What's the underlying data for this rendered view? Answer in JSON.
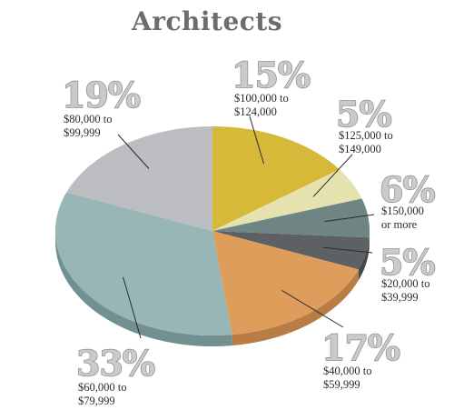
{
  "chart_data": {
    "type": "pie",
    "title": "Architects",
    "slices": [
      {
        "label_line1": "$100,000 to",
        "label_line2": "$124,000",
        "percent_text": "15%",
        "value": 15,
        "color": "#d7b93a",
        "side_color": "#b39a2e"
      },
      {
        "label_line1": "$125,000 to",
        "label_line2": "$149,000",
        "percent_text": "5%",
        "value": 5,
        "color": "#e6e2b0",
        "side_color": "#c4c090"
      },
      {
        "label_line1": "$150,000",
        "label_line2": "or more",
        "percent_text": "6%",
        "value": 6,
        "color": "#6f8584",
        "side_color": "#566968"
      },
      {
        "label_line1": "$20,000 to",
        "label_line2": "$39,999",
        "percent_text": "5%",
        "value": 5,
        "color": "#5d6163",
        "side_color": "#46494b"
      },
      {
        "label_line1": "$40,000 to",
        "label_line2": "$59,999",
        "percent_text": "17%",
        "value": 17,
        "color": "#df9d5c",
        "side_color": "#b77d45"
      },
      {
        "label_line1": "$60,000 to",
        "label_line2": "$79,999",
        "percent_text": "33%",
        "value": 33,
        "color": "#97b6b5",
        "side_color": "#71908f"
      },
      {
        "label_line1": "$80,000 to",
        "label_line2": "$99,999",
        "percent_text": "19%",
        "value": 19,
        "color": "#bcbdc0",
        "side_color": "#97989b"
      }
    ]
  }
}
